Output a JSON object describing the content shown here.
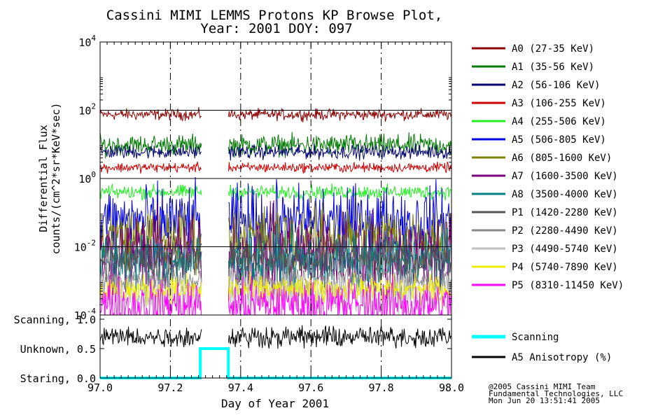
{
  "title": {
    "line1": "Cassini MIMI LEMMS Protons KP Browse Plot,",
    "line2": "Year: 2001 DOY: 097"
  },
  "xlabel": "Day of Year 2001",
  "ylabel": {
    "line1": "Differential Flux",
    "line2": "counts/(cm^2*sr*KeV*sec)"
  },
  "credits": [
    "@2005 Cassini MIMI Team",
    "Fundamental Technologies, LLC",
    "Mon Jun 20 13:51:41 2005"
  ],
  "colors": {
    "frame": "#000000",
    "gap_bar": "#00ffff"
  },
  "chart_data": [
    {
      "type": "line",
      "y_scale": "log",
      "xlim": [
        97.0,
        98.0
      ],
      "ylim": [
        0.0001,
        10000
      ],
      "x_ticks": [
        97.0,
        97.2,
        97.4,
        97.6,
        97.8,
        98.0
      ],
      "x_tick_labels": [
        "97.0",
        "97.2",
        "97.4",
        "97.6",
        "97.8",
        "98.0"
      ],
      "y_ticks": [
        {
          "value": 10000,
          "base": "10",
          "exp": "4"
        },
        {
          "value": 100,
          "base": "10",
          "exp": "2"
        },
        {
          "value": 1,
          "base": "10",
          "exp": "0"
        },
        {
          "value": 0.01,
          "base": "10",
          "exp": "-2"
        },
        {
          "value": 0.0001,
          "base": "10",
          "exp": "-4"
        }
      ],
      "grid": "dashed vertical at x ticks",
      "legend_position": "right",
      "data_gap": [
        97.29,
        97.365
      ],
      "series": [
        {
          "name": "A0 (27-35 KeV)",
          "color": "#8b0000",
          "level": 75,
          "spread": 0.16
        },
        {
          "name": "A1 (35-56 KeV)",
          "color": "#007a00",
          "level": 9.5,
          "spread": 0.3
        },
        {
          "name": "A2 (56-106 KeV)",
          "color": "#00006e",
          "level": 6.0,
          "spread": 0.2
        },
        {
          "name": "A3 (106-255 KeV)",
          "color": "#cc0000",
          "level": 2.1,
          "spread": 0.14
        },
        {
          "name": "A4 (255-506 KeV)",
          "color": "#22ee22",
          "level": 0.4,
          "spread": 0.2
        },
        {
          "name": "A5 (506-805 KeV)",
          "color": "#0000e0",
          "level": 0.055,
          "spread": 1.0
        },
        {
          "name": "A6 (805-1600 KeV)",
          "color": "#808000",
          "level": 0.018,
          "spread": 0.9
        },
        {
          "name": "A7 (1600-3500 KeV)",
          "color": "#7a007a",
          "level": 0.006,
          "spread": 1.2
        },
        {
          "name": "A8 (3500-4000 KeV)",
          "color": "#008080",
          "level": 0.004,
          "spread": 0.8
        },
        {
          "name": "P1 (1420-2280 KeV)",
          "color": "#555555",
          "level": 0.0045,
          "spread": 0.5
        },
        {
          "name": "P2 (2280-4490 KeV)",
          "color": "#888888",
          "level": 0.001,
          "spread": 0.5
        },
        {
          "name": "P3 (4490-5740 KeV)",
          "color": "#c0c0c0",
          "level": 0.0004,
          "spread": 0.6
        },
        {
          "name": "P4 (5740-7890 KeV)",
          "color": "#eeee00",
          "level": 0.00055,
          "spread": 0.4
        },
        {
          "name": "P5 (8310-11450 KeV)",
          "color": "#ff00ff",
          "level": 0.0002,
          "spread": 0.7
        }
      ]
    },
    {
      "type": "line",
      "xlim": [
        97.0,
        98.0
      ],
      "ylim": [
        0.0,
        1.0
      ],
      "y_ticks": [
        {
          "value": 1.0,
          "label": "Scanning, 1.0"
        },
        {
          "value": 0.5,
          "label": "Unknown, 0.5"
        },
        {
          "value": 0.0,
          "label": "Staring, 0.0"
        }
      ],
      "series": [
        {
          "name": "Scanning",
          "color": "#00ffff",
          "x": [
            97.0,
            97.285,
            97.285,
            97.365,
            97.365,
            98.0
          ],
          "y": [
            0.0,
            0.0,
            0.5,
            0.5,
            0.0,
            0.0
          ]
        },
        {
          "name": "A5 Anisotropy (%)",
          "color": "#000000",
          "level": 0.7,
          "spread": 0.22
        }
      ]
    }
  ]
}
